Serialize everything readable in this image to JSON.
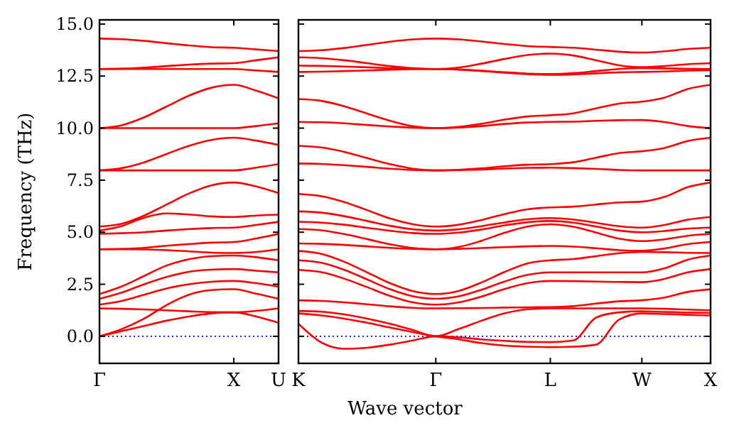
{
  "chart_data": [
    {
      "type": "line",
      "ylabel": "Frequency (THz)",
      "ylim": [
        -1.3,
        15.2
      ],
      "yticks": [
        {
          "value": 0,
          "label": "0.0"
        },
        {
          "value": 2.5,
          "label": "2.5"
        },
        {
          "value": 5,
          "label": "5.0"
        },
        {
          "value": 7.5,
          "label": "7.5"
        },
        {
          "value": 10,
          "label": "10.0"
        },
        {
          "value": 12.5,
          "label": "12.5"
        },
        {
          "value": 15,
          "label": "15.0"
        }
      ],
      "categories": [
        "Γ",
        null,
        null,
        null,
        null,
        null,
        "X",
        null,
        "U"
      ],
      "ref_lines": [
        {
          "axis": "y",
          "value": 0,
          "color": "#0000ff",
          "line_style": "dotted"
        }
      ],
      "series": [
        {
          "color": "#ff0000",
          "values": [
            14.3,
            14.27,
            14.19,
            14.08,
            13.97,
            13.89,
            13.86,
            13.78,
            13.7
          ]
        },
        {
          "color": "#ff0000",
          "values": [
            12.84,
            12.86,
            12.91,
            12.98,
            13.05,
            13.1,
            13.12,
            13.26,
            13.4
          ]
        },
        {
          "color": "#ff0000",
          "values": [
            12.84,
            12.84,
            12.84,
            12.84,
            12.84,
            12.84,
            12.84,
            12.77,
            12.7
          ]
        },
        {
          "color": "#ff0000",
          "values": [
            10.0,
            10.14,
            10.52,
            11.04,
            11.56,
            11.94,
            12.08,
            11.8,
            11.43
          ]
        },
        {
          "color": "#ff0000",
          "values": [
            10.0,
            10.0,
            10.0,
            10.0,
            10.0,
            10.0,
            10.0,
            10.1,
            10.23
          ]
        },
        {
          "color": "#ff0000",
          "values": [
            7.97,
            8.08,
            8.36,
            8.76,
            9.15,
            9.43,
            9.54,
            9.4,
            9.19
          ]
        },
        {
          "color": "#ff0000",
          "values": [
            7.97,
            7.97,
            7.97,
            7.97,
            7.97,
            7.97,
            7.97,
            8.1,
            8.27
          ]
        },
        {
          "color": "#ff0000",
          "values": [
            5.27,
            5.41,
            5.8,
            6.33,
            6.86,
            7.25,
            7.39,
            7.2,
            6.88
          ]
        },
        {
          "color": "#ff0000",
          "values": [
            5.08,
            5.3,
            5.7,
            5.9,
            5.85,
            5.76,
            5.73,
            5.8,
            5.84
          ]
        },
        {
          "color": "#ff0000",
          "values": [
            4.92,
            4.95,
            5.0,
            5.08,
            5.15,
            5.2,
            5.22,
            5.35,
            5.5
          ]
        },
        {
          "color": "#ff0000",
          "values": [
            4.18,
            4.2,
            4.25,
            4.35,
            4.43,
            4.5,
            4.53,
            4.7,
            4.92
          ]
        },
        {
          "color": "#ff0000",
          "values": [
            4.18,
            4.18,
            4.17,
            4.14,
            4.08,
            4.02,
            4.0,
            4.05,
            4.18
          ]
        },
        {
          "color": "#ff0000",
          "values": [
            2.03,
            2.4,
            2.9,
            3.4,
            3.7,
            3.85,
            3.88,
            3.8,
            3.65
          ]
        },
        {
          "color": "#ff0000",
          "values": [
            1.8,
            2.1,
            2.5,
            2.85,
            3.1,
            3.2,
            3.23,
            3.15,
            3.07
          ]
        },
        {
          "color": "#ff0000",
          "values": [
            1.52,
            1.7,
            2.0,
            2.3,
            2.5,
            2.62,
            2.66,
            2.55,
            2.38
          ]
        },
        {
          "color": "#ff0000",
          "values": [
            1.34,
            1.32,
            1.29,
            1.25,
            1.2,
            1.16,
            1.15,
            1.22,
            1.34
          ]
        },
        {
          "color": "#ff0000",
          "values": [
            0,
            0.25,
            0.5,
            0.75,
            0.95,
            1.1,
            1.15,
            0.95,
            0.65
          ]
        },
        {
          "color": "#ff0000",
          "values": [
            0,
            0.35,
            0.85,
            1.5,
            2.0,
            2.22,
            2.26,
            2.05,
            1.8
          ]
        }
      ]
    },
    {
      "type": "line",
      "xlabel": "Wave vector",
      "tick_labels": "x",
      "ylim": [
        -1.3,
        15.2
      ],
      "yticks": [
        {
          "value": 0,
          "label": null
        },
        {
          "value": 2.5,
          "label": null
        },
        {
          "value": 5,
          "label": null
        },
        {
          "value": 7.5,
          "label": null
        },
        {
          "value": 10,
          "label": null
        },
        {
          "value": 12.5,
          "label": null
        },
        {
          "value": 15,
          "label": null
        }
      ],
      "categories": [
        "K",
        null,
        null,
        null,
        null,
        null,
        "Γ",
        null,
        null,
        null,
        null,
        "L",
        null,
        null,
        null,
        "W",
        null,
        null,
        "X"
      ],
      "ref_lines": [
        {
          "axis": "y",
          "value": 0,
          "color": "#0000ff",
          "line_style": "dotted"
        }
      ],
      "series": [
        {
          "color": "#ff0000",
          "values": [
            13.7,
            13.74,
            13.85,
            14.0,
            14.15,
            14.26,
            14.3,
            14.26,
            14.16,
            14.04,
            13.94,
            13.9,
            13.86,
            13.77,
            13.67,
            13.63,
            13.69,
            13.8,
            13.86
          ]
        },
        {
          "color": "#ff0000",
          "values": [
            13.4,
            13.36,
            13.26,
            13.12,
            12.98,
            12.88,
            12.84,
            12.91,
            13.1,
            13.32,
            13.51,
            13.58,
            13.49,
            13.26,
            13.02,
            12.93,
            12.98,
            13.07,
            13.12
          ]
        },
        {
          "color": "#ff0000",
          "values": [
            13.0,
            12.99,
            12.96,
            12.92,
            12.88,
            12.85,
            12.84,
            12.82,
            12.76,
            12.68,
            12.62,
            12.6,
            12.64,
            12.74,
            12.84,
            12.88,
            12.87,
            12.85,
            12.84
          ]
        },
        {
          "color": "#ff0000",
          "values": [
            12.7,
            12.71,
            12.74,
            12.77,
            12.81,
            12.83,
            12.84,
            12.81,
            12.74,
            12.66,
            12.59,
            12.56,
            12.58,
            12.63,
            12.68,
            12.7,
            12.72,
            12.76,
            12.78
          ]
        },
        {
          "color": "#ff0000",
          "values": [
            11.4,
            11.31,
            11.05,
            10.7,
            10.35,
            10.09,
            10.0,
            10.06,
            10.21,
            10.41,
            10.56,
            10.62,
            10.71,
            10.95,
            11.18,
            11.27,
            11.47,
            11.88,
            12.08
          ]
        },
        {
          "color": "#ff0000",
          "values": [
            10.3,
            10.28,
            10.23,
            10.15,
            10.08,
            10.02,
            10.0,
            10.03,
            10.1,
            10.2,
            10.27,
            10.3,
            10.31,
            10.35,
            10.38,
            10.39,
            10.29,
            10.1,
            10.0
          ]
        },
        {
          "color": "#ff0000",
          "values": [
            9.15,
            9.07,
            8.86,
            8.56,
            8.27,
            8.05,
            7.97,
            8.0,
            8.07,
            8.17,
            8.24,
            8.27,
            8.36,
            8.58,
            8.8,
            8.89,
            9.05,
            9.38,
            9.54
          ]
        },
        {
          "color": "#ff0000",
          "values": [
            8.3,
            8.28,
            8.22,
            8.14,
            8.05,
            7.99,
            7.97,
            7.98,
            8.01,
            8.06,
            8.09,
            8.1,
            8.08,
            8.04,
            7.99,
            7.97,
            7.97,
            7.97,
            7.97
          ]
        },
        {
          "color": "#ff0000",
          "values": [
            6.84,
            6.73,
            6.45,
            6.06,
            5.66,
            5.38,
            5.27,
            5.36,
            5.59,
            5.87,
            6.1,
            6.19,
            6.23,
            6.33,
            6.43,
            6.47,
            6.7,
            7.16,
            7.39
          ]
        },
        {
          "color": "#ff0000",
          "values": [
            6.0,
            5.94,
            5.77,
            5.54,
            5.31,
            5.14,
            5.08,
            5.14,
            5.29,
            5.47,
            5.62,
            5.68,
            5.61,
            5.45,
            5.29,
            5.22,
            5.35,
            5.6,
            5.73
          ]
        },
        {
          "color": "#ff0000",
          "values": [
            5.5,
            5.46,
            5.36,
            5.21,
            5.07,
            4.96,
            4.92,
            4.98,
            5.13,
            5.33,
            5.48,
            5.54,
            5.46,
            5.27,
            5.08,
            5.0,
            5.06,
            5.17,
            5.22
          ]
        },
        {
          "color": "#ff0000",
          "values": [
            5.15,
            5.09,
            4.91,
            4.67,
            4.42,
            4.24,
            4.18,
            4.29,
            4.59,
            4.97,
            5.27,
            5.38,
            5.26,
            4.98,
            4.69,
            4.57,
            4.66,
            4.83,
            4.92
          ]
        },
        {
          "color": "#ff0000",
          "values": [
            4.46,
            4.44,
            4.39,
            4.32,
            4.25,
            4.2,
            4.18,
            4.2,
            4.24,
            4.28,
            4.32,
            4.34,
            4.31,
            4.23,
            4.14,
            4.11,
            4.22,
            4.43,
            4.53
          ]
        },
        {
          "color": "#ff0000",
          "values": [
            4.1,
            3.96,
            3.58,
            3.07,
            2.55,
            2.17,
            2.03,
            2.18,
            2.59,
            3.09,
            3.5,
            3.65,
            3.71,
            3.85,
            3.99,
            4.05,
            4.04,
            4.01,
            4.0
          ]
        },
        {
          "color": "#ff0000",
          "values": [
            3.65,
            3.53,
            3.19,
            2.73,
            2.26,
            1.92,
            1.8,
            1.92,
            2.24,
            2.63,
            2.95,
            3.07,
            3.07,
            3.07,
            3.07,
            3.07,
            3.27,
            3.68,
            3.88
          ]
        },
        {
          "color": "#ff0000",
          "values": [
            3.19,
            3.08,
            2.77,
            2.36,
            1.94,
            1.63,
            1.52,
            1.63,
            1.91,
            2.27,
            2.55,
            2.66,
            2.65,
            2.63,
            2.61,
            2.6,
            2.76,
            3.07,
            3.23
          ]
        },
        {
          "color": "#ff0000",
          "values": [
            1.73,
            1.7,
            1.63,
            1.54,
            1.44,
            1.37,
            1.34,
            1.35,
            1.36,
            1.38,
            1.39,
            1.4,
            1.45,
            1.57,
            1.68,
            1.73,
            1.86,
            2.13,
            2.26
          ]
        },
        {
          "color": "#ff0000",
          "values": [
            1.22,
            1.18,
            1.05,
            0.85,
            0.6,
            0.3,
            0,
            0.35,
            0.75,
            1.1,
            1.3,
            1.34,
            1.34,
            1.34,
            1.34,
            1.34,
            1.32,
            1.28,
            1.25
          ]
        },
        {
          "color": "#ff0000",
          "values": [
            0.6,
            -0.3,
            -0.6,
            -0.55,
            -0.4,
            -0.2,
            0,
            -0.05,
            -0.15,
            -0.22,
            -0.27,
            -0.28,
            -0.2,
            0.9,
            1.15,
            1.2,
            1.17,
            1.14,
            1.12
          ]
        },
        {
          "color": "#ff0000",
          "values": [
            1.1,
            1.0,
            0.85,
            0.65,
            0.42,
            0.2,
            0,
            -0.15,
            -0.33,
            -0.45,
            -0.5,
            -0.52,
            -0.5,
            -0.4,
            0.8,
            1.1,
            1.07,
            1.03,
            1.0
          ]
        }
      ]
    }
  ]
}
